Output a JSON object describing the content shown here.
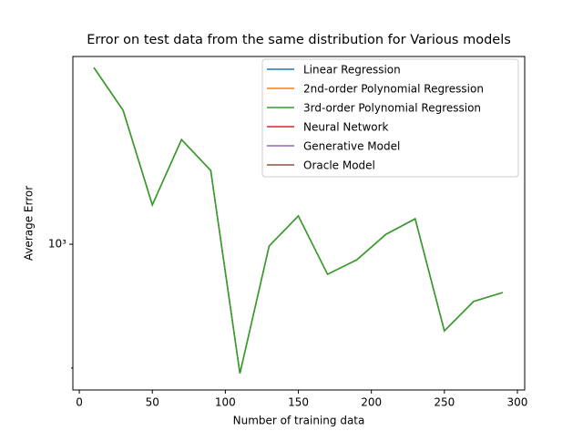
{
  "chart_data": {
    "type": "line",
    "title": "Error on test data from the same distribution for Various models",
    "xlabel": "Number of training data",
    "ylabel": "Average Error",
    "x": [
      10,
      30,
      50,
      70,
      90,
      110,
      130,
      150,
      170,
      190,
      210,
      230,
      250,
      270,
      290
    ],
    "series": [
      {
        "name": "Linear Regression",
        "color": "#1f77b4",
        "values": [
          1664,
          1471,
          1120,
          1352,
          1237,
          689,
          995,
          1085,
          917,
          956,
          1029,
          1076,
          779,
          848,
          870
        ]
      },
      {
        "name": "2nd-order Polynomial Regression",
        "color": "#ff7f0e",
        "values": [
          1664,
          1471,
          1120,
          1352,
          1237,
          689,
          995,
          1085,
          917,
          956,
          1029,
          1076,
          779,
          848,
          870
        ]
      },
      {
        "name": "3rd-order Polynomial Regression",
        "color": "#2ca02c",
        "values": [
          1664,
          1471,
          1120,
          1352,
          1237,
          689,
          995,
          1085,
          917,
          956,
          1029,
          1076,
          779,
          848,
          870
        ]
      },
      {
        "name": "Neural Network",
        "color": "#d62728",
        "values": [
          null,
          null,
          null,
          null,
          null,
          null,
          null,
          null,
          null,
          null,
          null,
          null,
          null,
          null,
          null
        ]
      },
      {
        "name": "Generative Model",
        "color": "#9467bd",
        "values": [
          null,
          null,
          null,
          null,
          null,
          null,
          null,
          null,
          null,
          null,
          null,
          null,
          null,
          null,
          null
        ]
      },
      {
        "name": "Oracle Model",
        "color": "#8c564b",
        "values": [
          null,
          null,
          null,
          null,
          null,
          null,
          null,
          null,
          null,
          null,
          null,
          null,
          null,
          null,
          null
        ]
      }
    ],
    "xlim": [
      -4.4,
      305
    ],
    "xticks": [
      0,
      50,
      100,
      150,
      200,
      250,
      300
    ],
    "ylim": [
      657,
      1718
    ],
    "ylog": true,
    "yticks": [
      {
        "value": 1000,
        "label": "10³"
      }
    ],
    "minor_yticks": [
      700
    ],
    "legend": "upper right",
    "grid": false
  }
}
